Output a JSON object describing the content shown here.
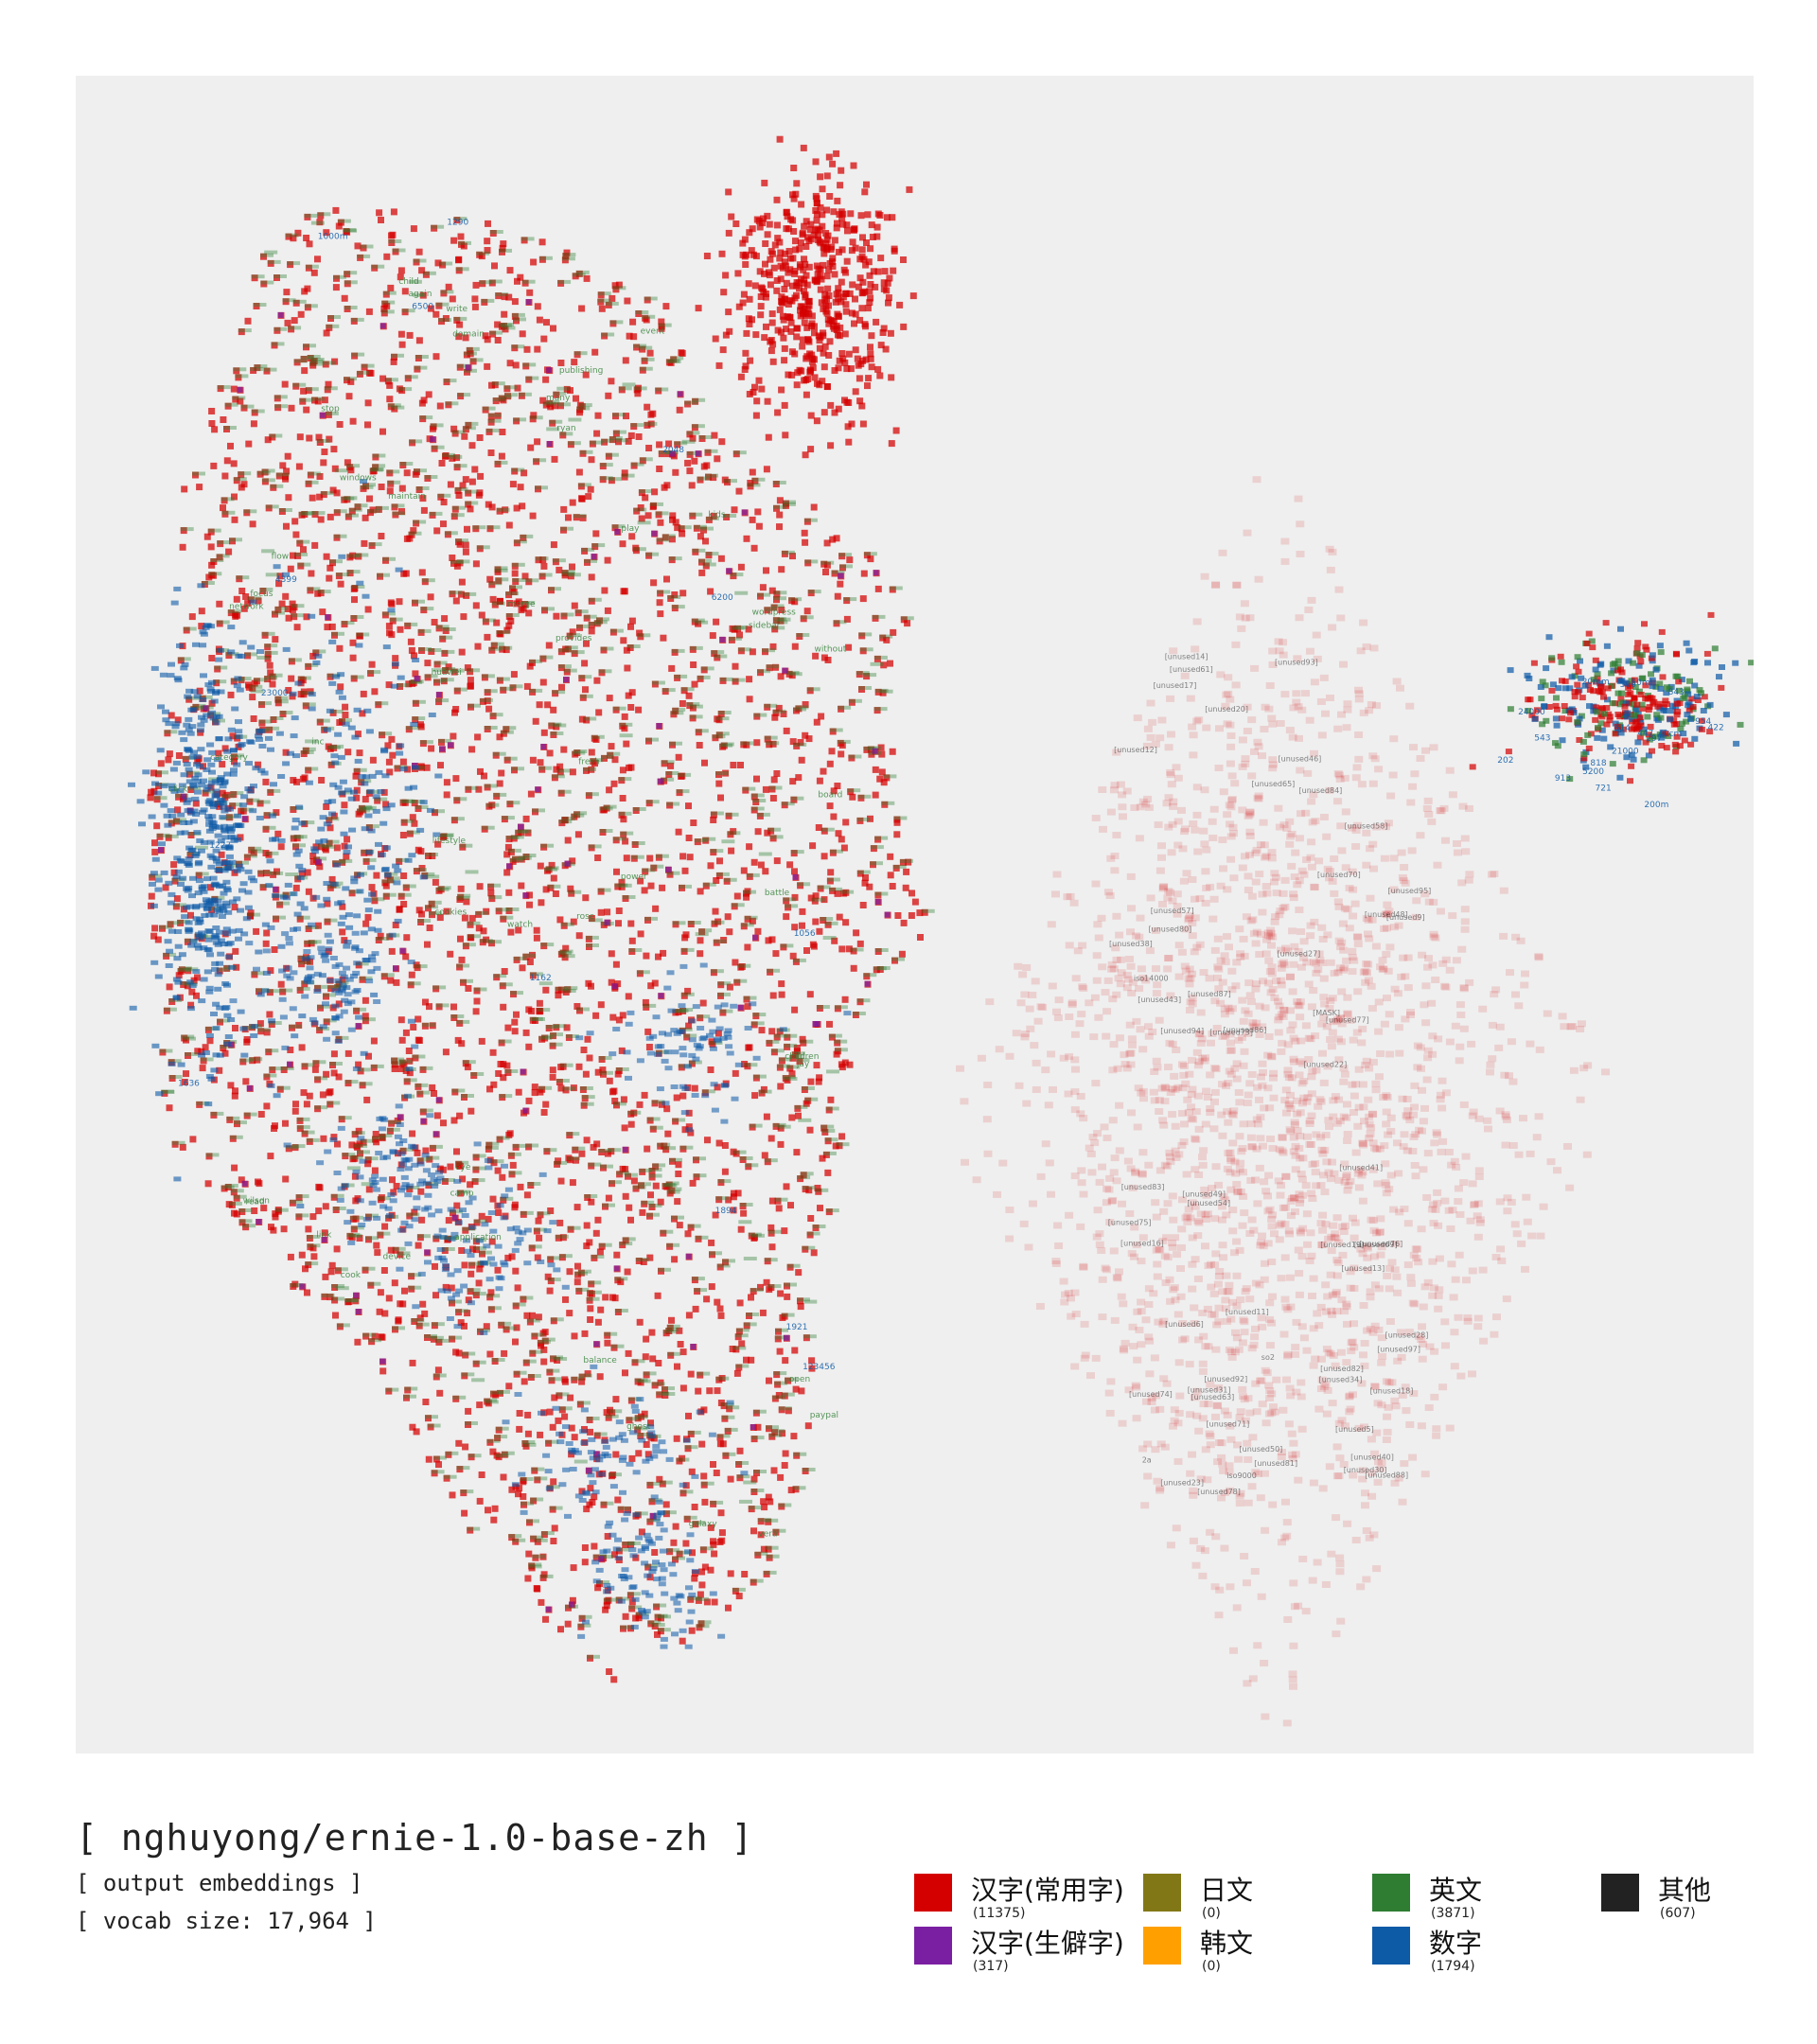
{
  "chart_data": {
    "type": "scatter",
    "model": "[ nghuyong/ernie-1.0-base-zh ]",
    "subtitle": "[ output embeddings ]",
    "vocab_line": "[ vocab size: 17,964 ]",
    "legend": [
      {
        "key": "hanzi_common",
        "label": "汉字(常用字)",
        "count": "(11375)",
        "color": "#d40000"
      },
      {
        "key": "hanzi_rare",
        "label": "汉字(生僻字)",
        "count": "(317)",
        "color": "#7b1fa2"
      },
      {
        "key": "japanese",
        "label": "日文",
        "count": "(0)",
        "color": "#827717"
      },
      {
        "key": "korean",
        "label": "韩文",
        "count": "(0)",
        "color": "#ffa000"
      },
      {
        "key": "english",
        "label": "英文",
        "count": "(3871)",
        "color": "#2e7d32"
      },
      {
        "key": "digits",
        "label": "数字",
        "count": "(1794)",
        "color": "#0d5aa7"
      },
      {
        "key": "other",
        "label": "其他",
        "count": "(607)",
        "color": "#222222"
      }
    ],
    "sample_tokens": {
      "english": [
        "children",
        "wordpress",
        "stop",
        "watch",
        "link",
        "child",
        "focus",
        "board",
        "without",
        "wilson",
        "category",
        "eye",
        "publishing",
        "read",
        "click",
        "write",
        "device",
        "lifestyle",
        "domain",
        "application",
        "network",
        "event",
        "power",
        "cookies",
        "merge",
        "maintain",
        "galaxy",
        "camp",
        "fresh",
        "kids",
        "open",
        "ghost",
        "balance",
        "paypal",
        "battle",
        "flow",
        "play",
        "inc",
        "huawei",
        "ryan",
        "jay",
        "again",
        "rose",
        "cook",
        "provides",
        "windows",
        "vera",
        "sidebar",
        "many"
      ],
      "digits": [
        "4399",
        "1056",
        "1227",
        "1290",
        "1894",
        "1921",
        "1636",
        "1162",
        "123456",
        "2048",
        "1000m",
        "6500",
        "6200",
        "23000",
        "5200",
        "20mm",
        "50ml",
        "954",
        "24000",
        "21000",
        "200m",
        "40cm",
        "447",
        "422",
        "614",
        "202",
        "818",
        "721",
        "506",
        "543",
        "843",
        "913",
        "297"
      ],
      "other": [
        "[unused84]",
        "[unused61]",
        "[unused20]",
        "[unused92]",
        "[unused70]",
        "[unused80]",
        "[unused93]",
        "[unused57]",
        "[unused81]",
        "[unused74]",
        "[unused19]",
        "[unused48]",
        "[unused40]",
        "[unused95]",
        "[unused41]",
        "[unused34]",
        "[unused9]",
        "[unused88]",
        "[unused82]",
        "[unused73]",
        "[unused27]",
        "[unused71]",
        "[unused17]",
        "[unused86]",
        "[unused63]",
        "[unused49]",
        "[unused18]",
        "[unused75]",
        "[unused50]",
        "[unused14]",
        "[unused46]",
        "[unused28]",
        "[unused54]",
        "[unused78]",
        "[unused12]",
        "[unused30]",
        "[unused5]",
        "[unused23]",
        "[unused13]",
        "[unused31]",
        "[unused65]",
        "[unused69]",
        "[unused83]",
        "[unused77]",
        "[unused58]",
        "[unused38]",
        "[unused94]",
        "[unused16]",
        "[unused22]",
        "[unused6]",
        "[unused11]",
        "[unused76]",
        "[unused87]",
        "[unused97]",
        "[unused43]",
        "iso9000",
        "iso14000",
        "so2",
        "2a",
        "[MASK]"
      ]
    }
  }
}
